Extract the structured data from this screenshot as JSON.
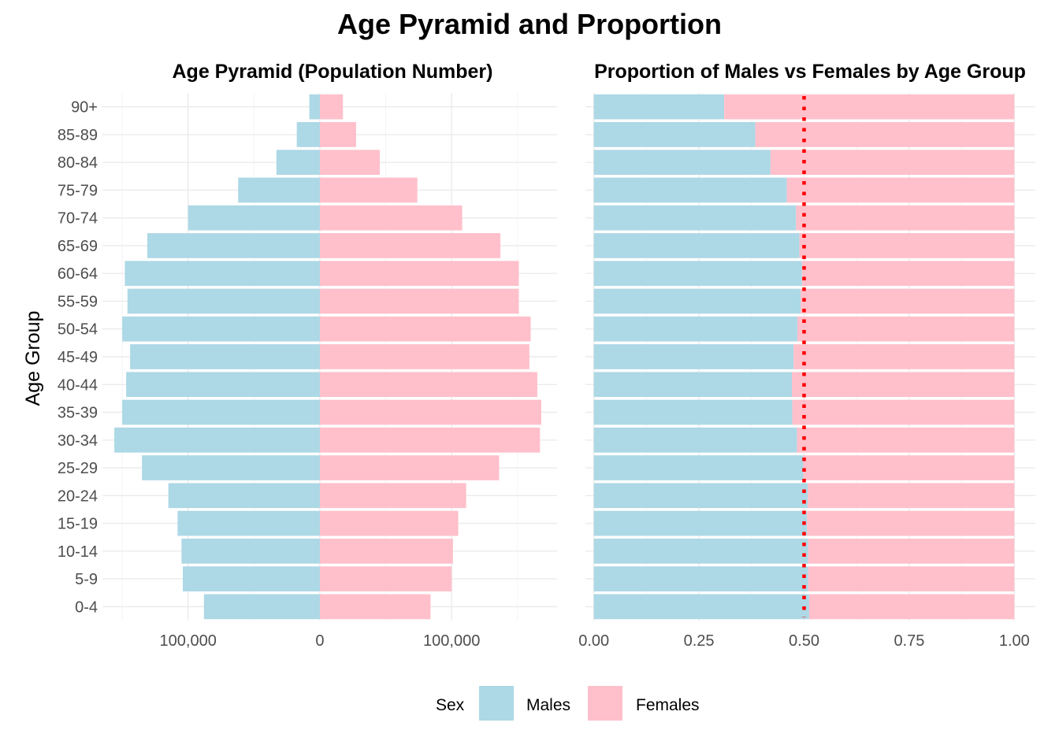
{
  "title": "Age Pyramid and Proportion",
  "legend": {
    "title": "Sex",
    "items": [
      {
        "label": "Males",
        "color": "#ADD8E6"
      },
      {
        "label": "Females",
        "color": "#FFC0CB"
      }
    ]
  },
  "chart_data": [
    {
      "type": "bar",
      "orientation": "horizontal",
      "title": "Age Pyramid (Population Number)",
      "ylabel": "Age Group",
      "xlabel": "",
      "categories": [
        "0-4",
        "5-9",
        "10-14",
        "15-19",
        "20-24",
        "25-29",
        "30-34",
        "35-39",
        "40-44",
        "45-49",
        "50-54",
        "55-59",
        "60-64",
        "65-69",
        "70-74",
        "75-79",
        "80-84",
        "85-89",
        "90+"
      ],
      "series": [
        {
          "name": "Males",
          "color": "#ADD8E6",
          "values": [
            88000,
            104000,
            105000,
            108000,
            115000,
            135000,
            156000,
            150000,
            147000,
            144000,
            150000,
            146000,
            148000,
            131000,
            100000,
            62000,
            33000,
            17500,
            8000
          ]
        },
        {
          "name": "Females",
          "color": "#FFC0CB",
          "values": [
            84000,
            100000,
            101000,
            105000,
            111000,
            136000,
            167000,
            168000,
            165000,
            159000,
            160000,
            151000,
            151000,
            137000,
            108000,
            74000,
            45500,
            27500,
            17500
          ]
        }
      ],
      "xlim": [
        -165000,
        180000
      ],
      "xticks": [
        {
          "value": -100000,
          "label": "100,000"
        },
        {
          "value": 0,
          "label": "0"
        },
        {
          "value": 100000,
          "label": "100,000"
        }
      ],
      "grid": true
    },
    {
      "type": "bar",
      "stacked": true,
      "orientation": "horizontal",
      "title": "Proportion of Males vs Females by Age Group",
      "categories": [
        "0-4",
        "5-9",
        "10-14",
        "15-19",
        "20-24",
        "25-29",
        "30-34",
        "35-39",
        "40-44",
        "45-49",
        "50-54",
        "55-59",
        "60-64",
        "65-69",
        "70-74",
        "75-79",
        "80-84",
        "85-89",
        "90+"
      ],
      "series": [
        {
          "name": "Males",
          "color": "#ADD8E6",
          "values": [
            0.512,
            0.51,
            0.51,
            0.507,
            0.509,
            0.498,
            0.483,
            0.472,
            0.471,
            0.475,
            0.484,
            0.492,
            0.495,
            0.489,
            0.481,
            0.459,
            0.42,
            0.384,
            0.31
          ]
        },
        {
          "name": "Females",
          "color": "#FFC0CB",
          "values": [
            0.488,
            0.49,
            0.49,
            0.493,
            0.491,
            0.502,
            0.517,
            0.528,
            0.529,
            0.525,
            0.516,
            0.508,
            0.505,
            0.511,
            0.519,
            0.541,
            0.58,
            0.616,
            0.69
          ]
        }
      ],
      "reference_line": {
        "value": 0.5,
        "color": "#FF0000",
        "style": "dotted"
      },
      "xlim": [
        -0.02,
        1.05
      ],
      "xticks": [
        {
          "value": 0,
          "label": "0.00"
        },
        {
          "value": 0.25,
          "label": "0.25"
        },
        {
          "value": 0.5,
          "label": "0.50"
        },
        {
          "value": 0.75,
          "label": "0.75"
        },
        {
          "value": 1,
          "label": "1.00"
        }
      ],
      "grid": true
    }
  ]
}
